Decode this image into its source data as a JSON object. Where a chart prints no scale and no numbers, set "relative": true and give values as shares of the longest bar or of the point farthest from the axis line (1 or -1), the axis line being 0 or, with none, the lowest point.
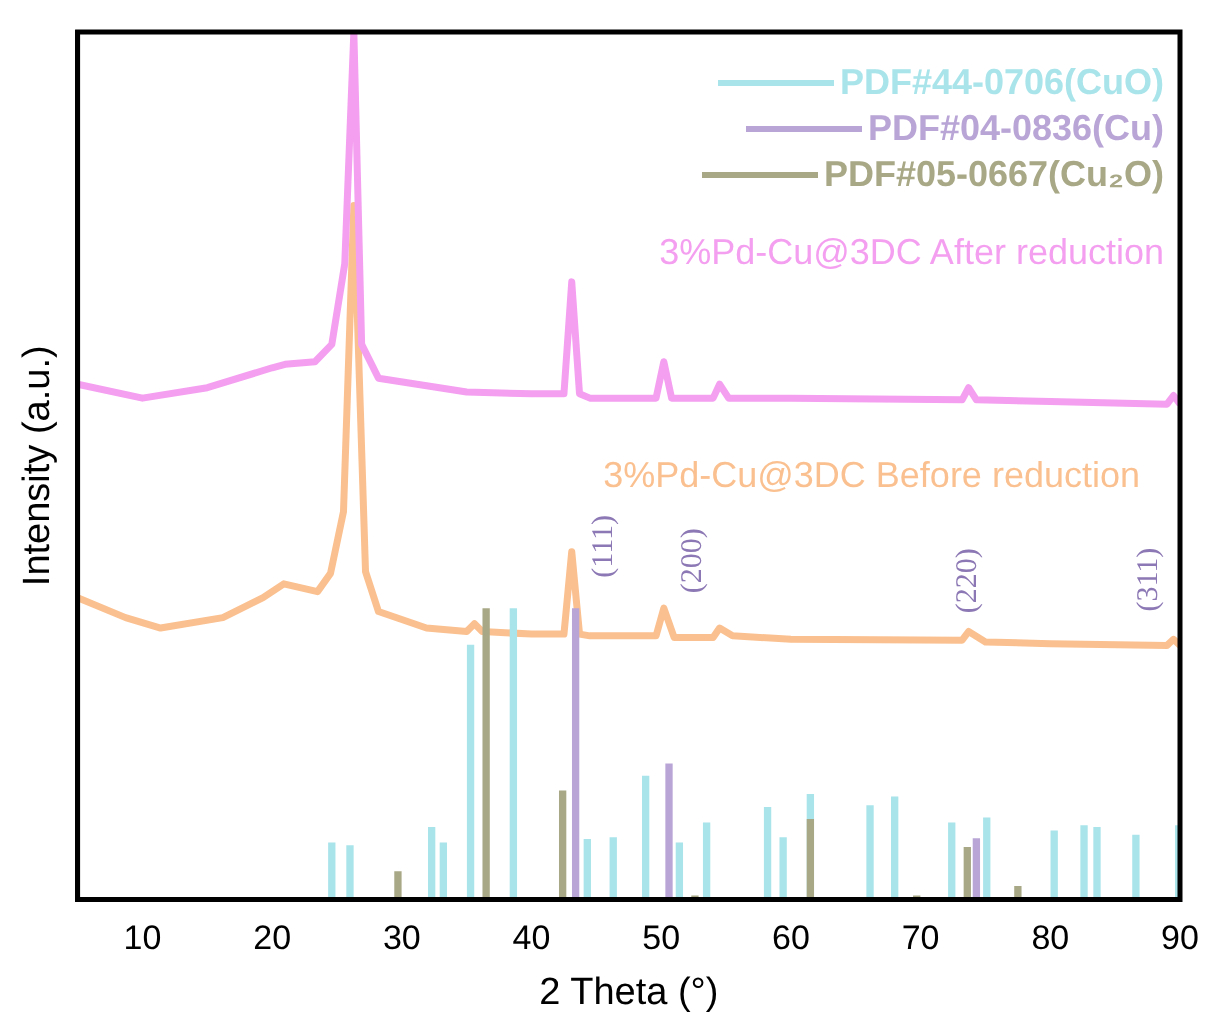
{
  "chart_data": {
    "type": "line",
    "relative": true,
    "xlabel": "2 Theta (°)",
    "ylabel": "Intensity (a.u.)",
    "xlim": [
      5,
      90
    ],
    "xticks": [
      10,
      20,
      30,
      40,
      50,
      60,
      70,
      80,
      90
    ],
    "grid": false,
    "legend": "top right",
    "marker": "none",
    "line_style": "solid",
    "series": [
      {
        "name": "3%Pd-Cu@3DC After reduction",
        "color": "#f49ff0",
        "x": [
          5,
          10,
          15,
          20,
          21,
          23.3,
          24.6,
          25.6,
          26.3,
          26.9,
          28.2,
          35,
          40,
          42.5,
          43.1,
          43.7,
          44.5,
          49.6,
          50.2,
          50.8,
          54,
          54.5,
          55.2,
          60,
          73.2,
          73.7,
          74.3,
          80,
          89,
          89.5,
          90
        ],
        "values": [
          0.594,
          0.578,
          0.59,
          0.613,
          0.617,
          0.62,
          0.64,
          0.733,
          1,
          0.64,
          0.601,
          0.585,
          0.583,
          0.583,
          0.712,
          0.583,
          0.578,
          0.578,
          0.62,
          0.578,
          0.578,
          0.594,
          0.578,
          0.578,
          0.576,
          0.59,
          0.576,
          0.574,
          0.571,
          0.581,
          0.571
        ]
      },
      {
        "name": "3%Pd-Cu@3DC Before reduction",
        "color": "#fbc08f",
        "x": [
          5,
          8.7,
          11.4,
          16.2,
          19.3,
          20.9,
          23.5,
          24.5,
          25.5,
          26.3,
          27.2,
          28.2,
          31.9,
          35,
          35.6,
          36.2,
          40,
          42.5,
          43.1,
          43.7,
          44.5,
          49.6,
          50.2,
          51,
          54,
          54.5,
          55.5,
          60,
          73.2,
          73.7,
          75,
          80,
          89,
          89.5,
          90
        ],
        "values": [
          0.348,
          0.325,
          0.313,
          0.325,
          0.348,
          0.364,
          0.355,
          0.376,
          0.447,
          0.8,
          0.378,
          0.332,
          0.313,
          0.309,
          0.318,
          0.309,
          0.306,
          0.306,
          0.401,
          0.306,
          0.304,
          0.304,
          0.336,
          0.302,
          0.302,
          0.313,
          0.304,
          0.3,
          0.299,
          0.309,
          0.297,
          0.295,
          0.293,
          0.3,
          0.293
        ]
      },
      {
        "name": "PDF#44-0706(CuO)",
        "type": "bar",
        "color": "#a8e4ea",
        "x": [
          24.6,
          26.0,
          32.3,
          33.2,
          35.3,
          38.6,
          44.3,
          46.3,
          48.8,
          51.4,
          53.5,
          58.2,
          59.4,
          61.5,
          66.1,
          68.0,
          72.4,
          75.1,
          80.3,
          82.6,
          83.6,
          86.6,
          89.9
        ],
        "values": [
          0.065,
          0.062,
          0.083,
          0.065,
          0.293,
          0.335,
          0.069,
          0.071,
          0.142,
          0.065,
          0.088,
          0.106,
          0.071,
          0.121,
          0.108,
          0.118,
          0.088,
          0.094,
          0.079,
          0.085,
          0.083,
          0.074,
          0.085
        ]
      },
      {
        "name": "PDF#04-0836(Cu)",
        "type": "bar",
        "color": "#b9a5d6",
        "x": [
          43.4,
          50.6,
          74.3
        ],
        "values": [
          0.335,
          0.156,
          0.07
        ]
      },
      {
        "name": "PDF#05-0667(Cu₂O)",
        "type": "bar",
        "color": "#a8a886",
        "x": [
          29.7,
          36.5,
          42.4,
          52.6,
          61.5,
          69.7,
          73.6,
          77.5
        ],
        "values": [
          0.032,
          0.335,
          0.125,
          0.004,
          0.092,
          0.004,
          0.06,
          0.015
        ]
      }
    ],
    "annotations": [
      "(111)",
      "(200)",
      "(220)",
      "(311)"
    ]
  }
}
